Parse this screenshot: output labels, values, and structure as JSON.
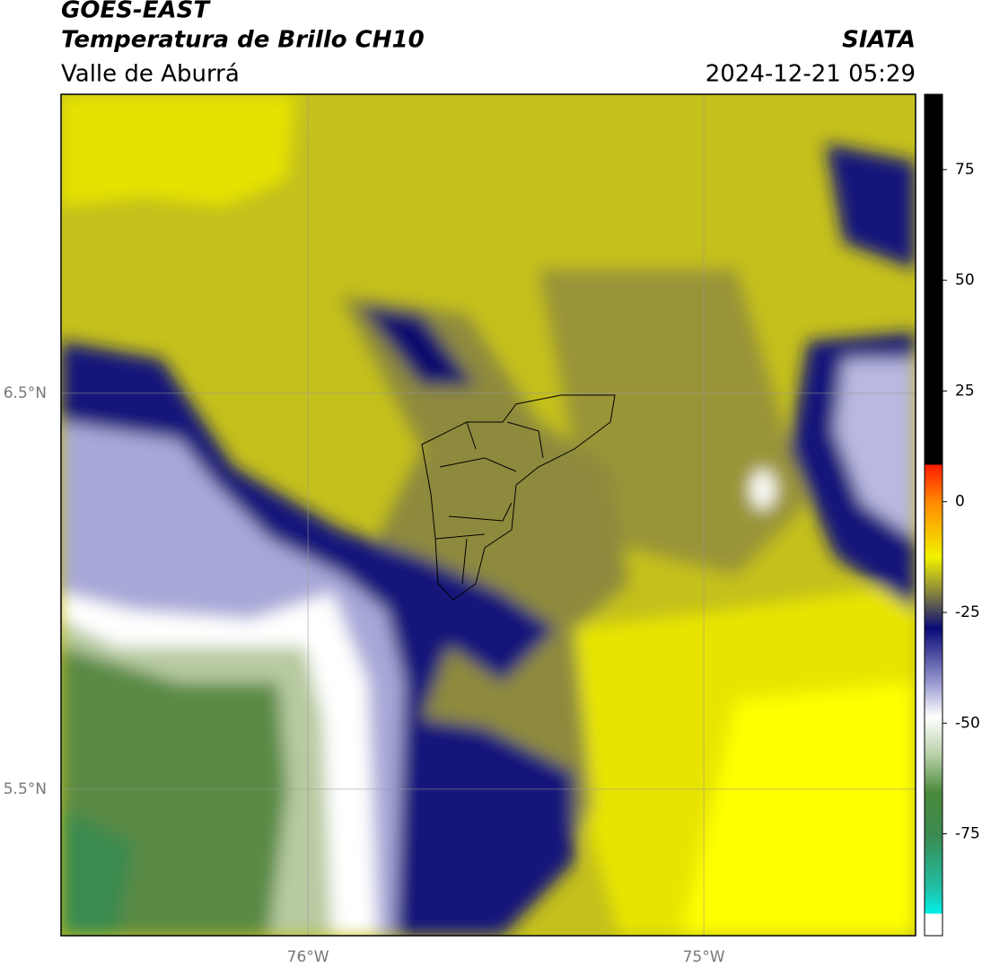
{
  "header": {
    "title": "GOES-EAST",
    "subtitle": "Temperatura de Brillo CH10",
    "region": "Valle de Aburrá",
    "source": "SIATA",
    "datetime": "2024-12-21 05:29"
  },
  "map": {
    "xlim": [
      -76.624,
      -74.465
    ],
    "ylim": [
      5.13,
      7.255
    ],
    "xticks": [
      {
        "value": -76,
        "label": "76°W"
      },
      {
        "value": -75,
        "label": "75°W"
      }
    ],
    "yticks": [
      {
        "value": 6.5,
        "label": "6.5°N"
      },
      {
        "value": 5.5,
        "label": "5.5°N"
      }
    ],
    "grid": true
  },
  "colorbar": {
    "lim": [
      -98,
      92
    ],
    "ticks": [
      75,
      50,
      25,
      0,
      -25,
      -50,
      -75
    ]
  }
}
